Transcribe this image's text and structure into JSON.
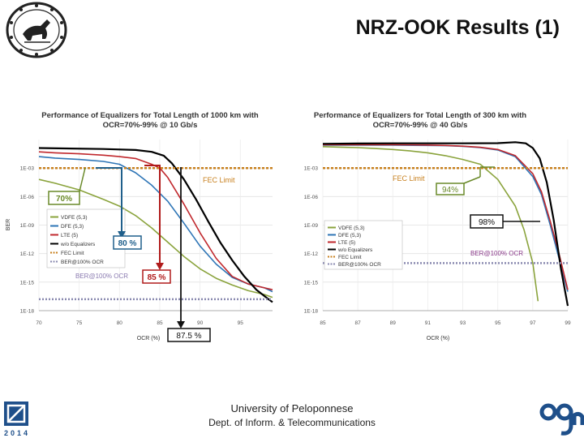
{
  "slide": {
    "title": "NRZ-OOK Results (1)",
    "footer_university": "University of Peloponnese",
    "footer_department": "Dept. of Inform. & Telecommunications",
    "logo_bottom_text": "2014"
  },
  "colors": {
    "vdfe": "#8aa33c",
    "dfe": "#2e75b6",
    "lte": "#c0282d",
    "no_eq": "#000000",
    "fec": "#c8801e",
    "ocr100": "#8a8ab0",
    "callout_green": "#6a8a2a",
    "callout_blue": "#1f5f8b",
    "callout_red": "#b01b1b"
  },
  "chart_data": [
    {
      "type": "line",
      "title": "Performance of Equalizers for Total Length of 1000 km with OCR=70%-99% @ 10 Gb/s",
      "xlabel": "OCR (%)",
      "ylabel": "BER",
      "xlim": [
        70,
        99
      ],
      "ylim_exp": [
        -18,
        0
      ],
      "x_ticks": [
        "70",
        "75",
        "80",
        "85",
        "90",
        "95"
      ],
      "y_ticks": [
        "1E-03",
        "1E-06",
        "1E-09",
        "1E-12",
        "1E-15",
        "1E-18"
      ],
      "fec_label": "FEC Limit",
      "ocr100_label": "BER@100% OCR",
      "legend": [
        "VDFE (5,3)",
        "DFE (5,3)",
        "LTE (5)",
        "w/o Equalizers",
        "FEC Limit",
        "BER@100% OCR"
      ],
      "series": [
        {
          "name": "VDFE (5,3)",
          "x": [
            70,
            72,
            75,
            78,
            80,
            82,
            84,
            86,
            88,
            90,
            92,
            94,
            96,
            98,
            99
          ],
          "y": [
            -4.2,
            -4.6,
            -5.3,
            -6.3,
            -7.0,
            -8.0,
            -9.3,
            -10.8,
            -12.3,
            -13.6,
            -14.6,
            -15.3,
            -15.9,
            -16.3,
            -16.6
          ]
        },
        {
          "name": "DFE (5,3)",
          "x": [
            70,
            72,
            75,
            78,
            80,
            82,
            84,
            86,
            88,
            90,
            92,
            94,
            96,
            98,
            99
          ],
          "y": [
            -1.8,
            -1.95,
            -2.1,
            -2.3,
            -2.6,
            -3.5,
            -4.8,
            -6.5,
            -8.8,
            -11.2,
            -13.1,
            -14.5,
            -15.2,
            -15.6,
            -16.0
          ]
        },
        {
          "name": "LTE (5)",
          "x": [
            70,
            72,
            75,
            78,
            80,
            82,
            84,
            85,
            86,
            88,
            90,
            92,
            94,
            96,
            98,
            99
          ],
          "y": [
            -1.3,
            -1.4,
            -1.5,
            -1.65,
            -1.8,
            -2.0,
            -2.6,
            -3.0,
            -4.0,
            -6.8,
            -9.8,
            -12.5,
            -14.4,
            -15.2,
            -15.6,
            -15.8
          ]
        },
        {
          "name": "w/o Equalizers",
          "x": [
            70,
            74,
            78,
            82,
            84,
            85.5,
            86.5,
            88,
            89.5,
            91,
            92.5,
            94,
            95.5,
            97,
            98.5,
            99
          ],
          "y": [
            -0.9,
            -0.95,
            -1.0,
            -1.1,
            -1.3,
            -1.7,
            -2.5,
            -4.2,
            -6.3,
            -8.6,
            -10.8,
            -12.7,
            -14.4,
            -15.8,
            -16.8,
            -17.1
          ]
        },
        {
          "name": "FEC Limit",
          "x": [
            70,
            99
          ],
          "y": [
            -3.0,
            -3.0
          ]
        },
        {
          "name": "BER@100% OCR",
          "x": [
            70,
            99
          ],
          "y": [
            -16.8,
            -16.8
          ]
        }
      ],
      "annotations": [
        "70%",
        "80 %",
        "85 %",
        "87.5 %"
      ]
    },
    {
      "type": "line",
      "title": "Performance of Equalizers for Total Length of 300 km with OCR=70%-99% @ 40 Gb/s",
      "xlabel": "OCR (%)",
      "ylabel": "BER",
      "xlim": [
        85,
        99
      ],
      "ylim_exp": [
        -18,
        0
      ],
      "x_ticks": [
        "85",
        "87",
        "89",
        "91",
        "93",
        "95",
        "97",
        "99"
      ],
      "y_ticks": [
        "1E-03",
        "1E-06",
        "1E-09",
        "1E-12",
        "1E-15",
        "1E-18"
      ],
      "fec_label": "FEC Limit",
      "ocr100_label": "BER@100% OCR",
      "legend": [
        "VDFE (5,3)",
        "DFE (5,3)",
        "LTE (5)",
        "w/o Equalizers",
        "FEC Limit",
        "BER@100% OCR"
      ],
      "series": [
        {
          "name": "VDFE (5,3)",
          "x": [
            85,
            86,
            87,
            88,
            89,
            90,
            91,
            92,
            93,
            94,
            95,
            96,
            96.5,
            97,
            97.3
          ],
          "y": [
            -0.75,
            -0.8,
            -0.85,
            -0.95,
            -1.05,
            -1.2,
            -1.4,
            -1.7,
            -2.1,
            -2.6,
            -4.2,
            -7.0,
            -9.5,
            -13.0,
            -17.0
          ]
        },
        {
          "name": "DFE (5,3)",
          "x": [
            85,
            87,
            89,
            91,
            92,
            93,
            94,
            95,
            96,
            97,
            97.5,
            98,
            98.5,
            99
          ],
          "y": [
            -0.6,
            -0.6,
            -0.6,
            -0.62,
            -0.65,
            -0.72,
            -0.85,
            -1.1,
            -1.8,
            -3.9,
            -5.8,
            -9.0,
            -12.5,
            -16.0
          ]
        },
        {
          "name": "LTE (5)",
          "x": [
            85,
            87,
            89,
            91,
            92,
            93,
            94,
            95,
            96,
            97,
            97.5,
            98,
            98.5,
            99
          ],
          "y": [
            -0.55,
            -0.55,
            -0.55,
            -0.58,
            -0.62,
            -0.7,
            -0.82,
            -1.05,
            -1.7,
            -3.6,
            -5.5,
            -8.6,
            -12.0,
            -15.8
          ]
        },
        {
          "name": "w/o Equalizers",
          "x": [
            85,
            87,
            89,
            91,
            93,
            95,
            96,
            96.6,
            97,
            97.4,
            97.8,
            98.2,
            98.6,
            99
          ],
          "y": [
            -0.45,
            -0.42,
            -0.4,
            -0.4,
            -0.4,
            -0.38,
            -0.28,
            -0.4,
            -0.9,
            -2.0,
            -4.5,
            -8.5,
            -13.5,
            -17.5
          ]
        },
        {
          "name": "FEC Limit",
          "x": [
            85,
            99
          ],
          "y": [
            -3.0,
            -3.0
          ]
        },
        {
          "name": "BER@100% OCR",
          "x": [
            85,
            99
          ],
          "y": [
            -13.0,
            -13.0
          ]
        }
      ],
      "annotations": [
        "94%",
        "98%"
      ]
    }
  ]
}
